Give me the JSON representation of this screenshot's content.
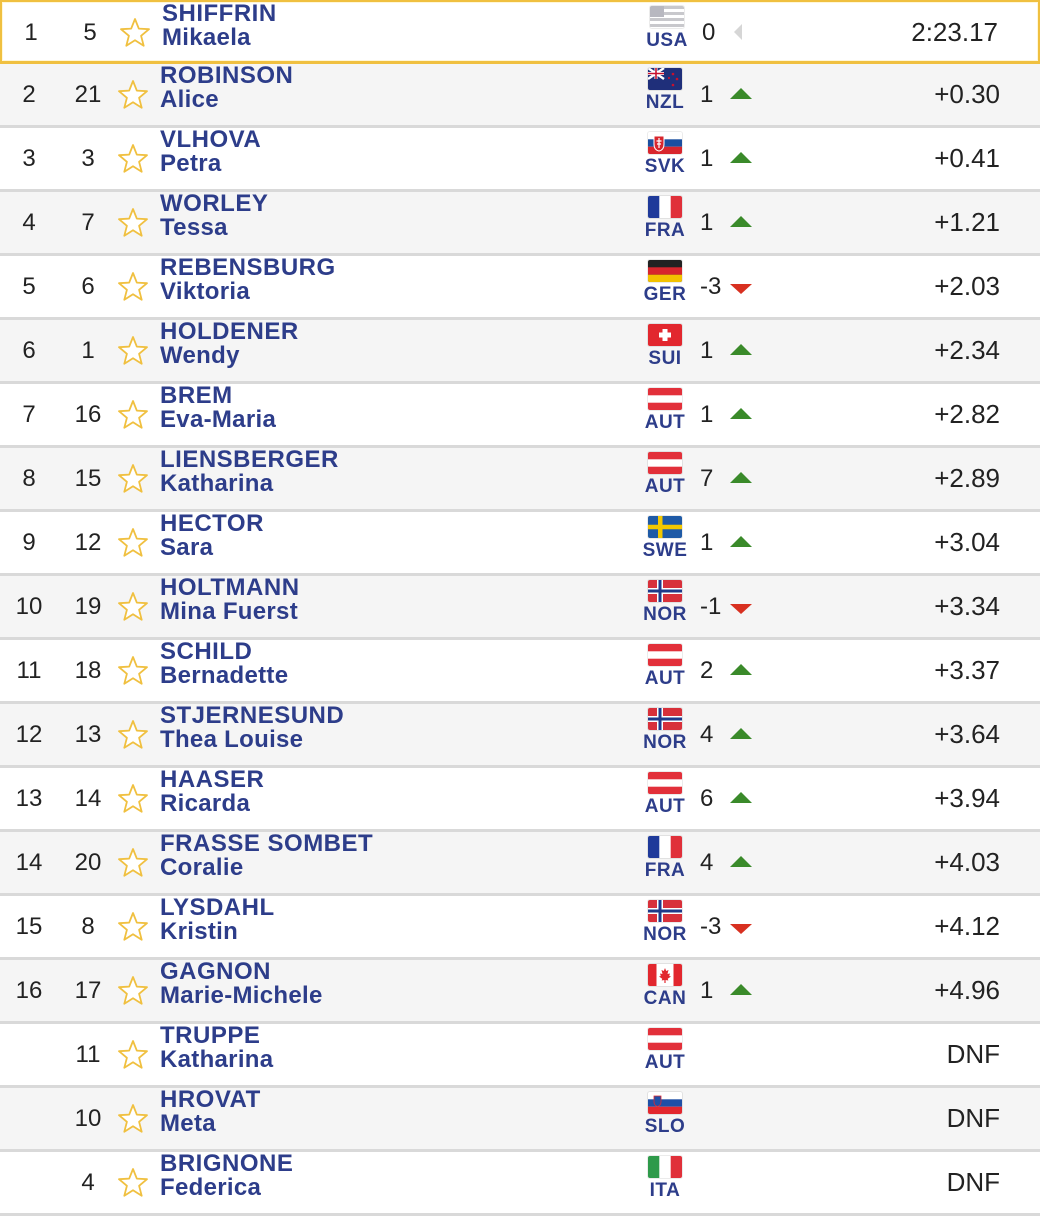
{
  "colors": {
    "name_blue": "#2d3d8a",
    "up_arrow": "#3a8a2a",
    "down_arrow": "#d83020",
    "leader_border": "#f0c040",
    "star": "#f0c040",
    "divider": "#d9d9d9"
  },
  "results": [
    {
      "rank": "1",
      "bib": "5",
      "surname": "SHIFFRIN",
      "firstname": "Mikaela",
      "nation": "USA",
      "flag": "usa-flag-icon",
      "move": "0",
      "move_dir": "none",
      "time": "2:23.17"
    },
    {
      "rank": "2",
      "bib": "21",
      "surname": "ROBINSON",
      "firstname": "Alice",
      "nation": "NZL",
      "flag": "nzl-flag-icon",
      "move": "1",
      "move_dir": "up",
      "time": "+0.30"
    },
    {
      "rank": "3",
      "bib": "3",
      "surname": "VLHOVA",
      "firstname": "Petra",
      "nation": "SVK",
      "flag": "svk-flag-icon",
      "move": "1",
      "move_dir": "up",
      "time": "+0.41"
    },
    {
      "rank": "4",
      "bib": "7",
      "surname": "WORLEY",
      "firstname": "Tessa",
      "nation": "FRA",
      "flag": "fra-flag-icon",
      "move": "1",
      "move_dir": "up",
      "time": "+1.21"
    },
    {
      "rank": "5",
      "bib": "6",
      "surname": "REBENSBURG",
      "firstname": "Viktoria",
      "nation": "GER",
      "flag": "ger-flag-icon",
      "move": "-3",
      "move_dir": "down",
      "time": "+2.03"
    },
    {
      "rank": "6",
      "bib": "1",
      "surname": "HOLDENER",
      "firstname": "Wendy",
      "nation": "SUI",
      "flag": "sui-flag-icon",
      "move": "1",
      "move_dir": "up",
      "time": "+2.34"
    },
    {
      "rank": "7",
      "bib": "16",
      "surname": "BREM",
      "firstname": "Eva-Maria",
      "nation": "AUT",
      "flag": "aut-flag-icon",
      "move": "1",
      "move_dir": "up",
      "time": "+2.82"
    },
    {
      "rank": "8",
      "bib": "15",
      "surname": "LIENSBERGER",
      "firstname": "Katharina",
      "nation": "AUT",
      "flag": "aut-flag-icon",
      "move": "7",
      "move_dir": "up",
      "time": "+2.89"
    },
    {
      "rank": "9",
      "bib": "12",
      "surname": "HECTOR",
      "firstname": "Sara",
      "nation": "SWE",
      "flag": "swe-flag-icon",
      "move": "1",
      "move_dir": "up",
      "time": "+3.04"
    },
    {
      "rank": "10",
      "bib": "19",
      "surname": "HOLTMANN",
      "firstname": "Mina Fuerst",
      "nation": "NOR",
      "flag": "nor-flag-icon",
      "move": "-1",
      "move_dir": "down",
      "time": "+3.34"
    },
    {
      "rank": "11",
      "bib": "18",
      "surname": "SCHILD",
      "firstname": "Bernadette",
      "nation": "AUT",
      "flag": "aut-flag-icon",
      "move": "2",
      "move_dir": "up",
      "time": "+3.37"
    },
    {
      "rank": "12",
      "bib": "13",
      "surname": "STJERNESUND",
      "firstname": "Thea Louise",
      "nation": "NOR",
      "flag": "nor-flag-icon",
      "move": "4",
      "move_dir": "up",
      "time": "+3.64"
    },
    {
      "rank": "13",
      "bib": "14",
      "surname": "HAASER",
      "firstname": "Ricarda",
      "nation": "AUT",
      "flag": "aut-flag-icon",
      "move": "6",
      "move_dir": "up",
      "time": "+3.94"
    },
    {
      "rank": "14",
      "bib": "20",
      "surname": "FRASSE SOMBET",
      "firstname": "Coralie",
      "nation": "FRA",
      "flag": "fra-flag-icon",
      "move": "4",
      "move_dir": "up",
      "time": "+4.03"
    },
    {
      "rank": "15",
      "bib": "8",
      "surname": "LYSDAHL",
      "firstname": "Kristin",
      "nation": "NOR",
      "flag": "nor-flag-icon",
      "move": "-3",
      "move_dir": "down",
      "time": "+4.12"
    },
    {
      "rank": "16",
      "bib": "17",
      "surname": "GAGNON",
      "firstname": "Marie-Michele",
      "nation": "CAN",
      "flag": "can-flag-icon",
      "move": "1",
      "move_dir": "up",
      "time": "+4.96"
    },
    {
      "rank": "",
      "bib": "11",
      "surname": "TRUPPE",
      "firstname": "Katharina",
      "nation": "AUT",
      "flag": "aut-flag-icon",
      "move": "",
      "move_dir": "none",
      "time": "DNF"
    },
    {
      "rank": "",
      "bib": "10",
      "surname": "HROVAT",
      "firstname": "Meta",
      "nation": "SLO",
      "flag": "slo-flag-icon",
      "move": "",
      "move_dir": "none",
      "time": "DNF"
    },
    {
      "rank": "",
      "bib": "4",
      "surname": "BRIGNONE",
      "firstname": "Federica",
      "nation": "ITA",
      "flag": "ita-flag-icon",
      "move": "",
      "move_dir": "none",
      "time": "DNF"
    }
  ]
}
